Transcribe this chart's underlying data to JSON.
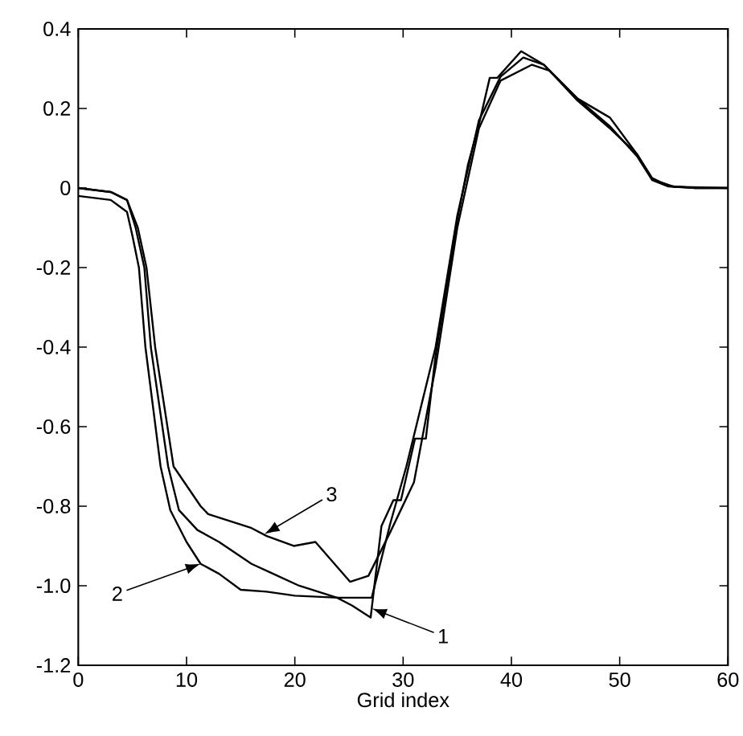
{
  "chart_data": {
    "type": "line",
    "xlabel": "Grid index",
    "series": [
      {
        "color": "#000000",
        "x": [
          0,
          3,
          4.5,
          5.3,
          6.1,
          6.7,
          8.3,
          9.3,
          11,
          13,
          16,
          18,
          20.4,
          23.9,
          25.3,
          27,
          28,
          29.1,
          29.8,
          31.1,
          32.1,
          33,
          35,
          36,
          37,
          38,
          38.7,
          40.9,
          43,
          46.1,
          49.1,
          51.6,
          53,
          54.5,
          57,
          60
        ],
        "values": [
          0,
          -0.01,
          -0.03,
          -0.1,
          -0.2,
          -0.4,
          -0.7,
          -0.81,
          -0.86,
          -0.89,
          -0.945,
          -0.97,
          -1.0,
          -1.03,
          -1.05,
          -1.08,
          -0.85,
          -0.785,
          -0.785,
          -0.63,
          -0.63,
          -0.42,
          -0.08,
          0.06,
          0.16,
          0.277,
          0.277,
          0.344,
          0.31,
          0.225,
          0.155,
          0.08,
          0.02,
          0.004,
          0,
          0
        ]
      },
      {
        "color": "#000000",
        "x": [
          0,
          3,
          4.5,
          5,
          5.6,
          6.2,
          7.6,
          8.5,
          10,
          11.3,
          13,
          15,
          17.4,
          20,
          24,
          27.1,
          28.8,
          30.3,
          33,
          35,
          37,
          39,
          41.1,
          43,
          46.1,
          49.1,
          51.6,
          53,
          55,
          60
        ],
        "values": [
          -0.02,
          -0.03,
          -0.06,
          -0.12,
          -0.2,
          -0.4,
          -0.7,
          -0.81,
          -0.89,
          -0.945,
          -0.97,
          -1.01,
          -1.015,
          -1.025,
          -1.03,
          -1.03,
          -0.845,
          -0.7,
          -0.4,
          -0.07,
          0.17,
          0.28,
          0.328,
          0.31,
          0.22,
          0.15,
          0.085,
          0.022,
          0.003,
          0
        ]
      },
      {
        "color": "#000000",
        "x": [
          0,
          3,
          4.5,
          5.5,
          6.3,
          7.1,
          8.8,
          11.3,
          12,
          16,
          17.4,
          19.9,
          21.9,
          25.1,
          26.8,
          28.8,
          31,
          33,
          35,
          37,
          39,
          41.9,
          43.5,
          46.1,
          49.1,
          51.6,
          53,
          54.5,
          57,
          60
        ],
        "values": [
          0,
          -0.01,
          -0.03,
          -0.1,
          -0.2,
          -0.4,
          -0.7,
          -0.8,
          -0.82,
          -0.855,
          -0.875,
          -0.9,
          -0.89,
          -0.99,
          -0.975,
          -0.866,
          -0.74,
          -0.45,
          -0.1,
          0.15,
          0.27,
          0.31,
          0.295,
          0.225,
          0.177,
          0.085,
          0.025,
          0.005,
          0,
          0
        ]
      }
    ],
    "annotations": [
      {
        "text": "1",
        "x": 27.1,
        "y": -1.057
      },
      {
        "text": "2",
        "x": 11.3,
        "y": -0.945
      },
      {
        "text": "3",
        "x": 17.2,
        "y": -0.87
      }
    ],
    "xlim": [
      0,
      60
    ],
    "ylim": [
      -1.2,
      0.4
    ],
    "xticks": [
      0,
      10,
      20,
      30,
      40,
      50,
      60
    ],
    "yticks": [
      {
        "value": -1.2,
        "label": "-1.2"
      },
      {
        "value": -1.0,
        "label": "-1.0"
      },
      {
        "value": -0.8,
        "label": "-0.8"
      },
      {
        "value": -0.6,
        "label": "-0.6"
      },
      {
        "value": -0.4,
        "label": "-0.4"
      },
      {
        "value": -0.2,
        "label": "-0.2"
      },
      {
        "value": 0,
        "label": "0"
      },
      {
        "value": 0.2,
        "label": "0.2"
      },
      {
        "value": 0.4,
        "label": "0.4"
      }
    ],
    "grid": false,
    "marker": "none",
    "line_style": "solid"
  }
}
